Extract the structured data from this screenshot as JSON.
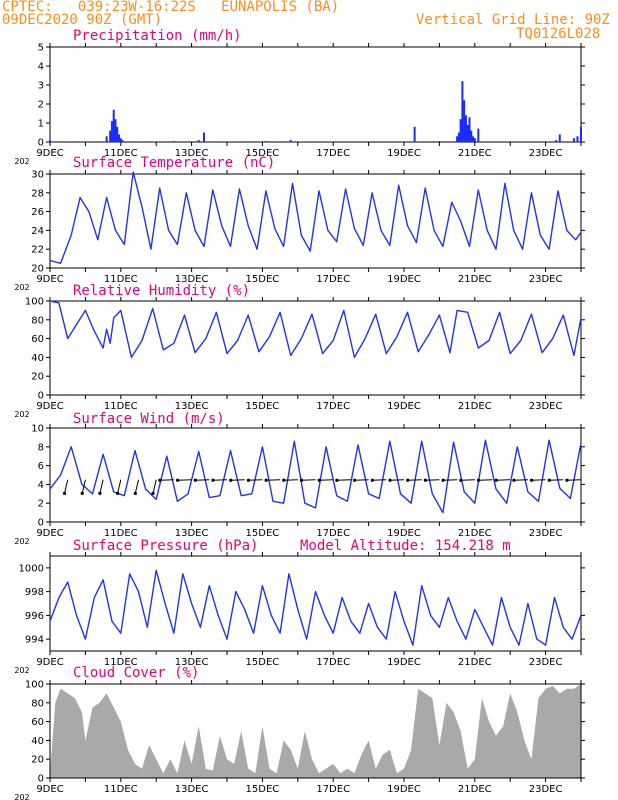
{
  "header": {
    "line1_left": "CPTEC:   039:23W-16:22S   EUNAPOLIS (BA)",
    "line2_left": "09DEC2020 90Z (GMT)",
    "grid_note": "Vertical Grid Line: 90Z",
    "code": "TQ0126L028"
  },
  "colors": {
    "header": "#ff8c1a",
    "title": "#e6007e",
    "line": "#2233ee",
    "bar": "#1a2bff",
    "cloud": "#a9a9a9"
  },
  "x_ticks": [
    "9DEC",
    "11DEC",
    "13DEC",
    "15DEC",
    "17DEC",
    "19DEC",
    "21DEC",
    "23DEC"
  ],
  "year_fragment": "202",
  "model_altitude": "Model Altitude: 154.218 m",
  "chart_data": [
    {
      "type": "bar",
      "title": "Precipitation (mm/h)",
      "ylim": [
        0,
        5
      ],
      "yticks": [
        "0",
        "1",
        "2",
        "3",
        "4",
        "5"
      ],
      "x_days": [
        0.0,
        1.6,
        1.7,
        1.75,
        1.8,
        1.85,
        1.9,
        1.95,
        2.0,
        2.05,
        3.5,
        4.2,
        4.35,
        6.1,
        6.8,
        10.3,
        11.0,
        11.5,
        11.55,
        11.6,
        11.65,
        11.7,
        11.75,
        11.8,
        11.85,
        11.9,
        11.95,
        12.0,
        12.1,
        14.3,
        14.4,
        14.8,
        14.9,
        15.0
      ],
      "values": [
        0.1,
        0.3,
        0.6,
        1.1,
        1.7,
        1.2,
        0.8,
        0.4,
        0.2,
        0.1,
        0.05,
        0.1,
        0.5,
        0.05,
        0.1,
        0.8,
        0.05,
        0.3,
        0.5,
        1.2,
        3.2,
        2.2,
        1.4,
        0.9,
        1.3,
        0.6,
        0.3,
        0.2,
        0.7,
        0.1,
        0.4,
        0.2,
        0.3,
        0.8
      ]
    },
    {
      "type": "line",
      "title": "Surface Temperature (nC)",
      "ylim": [
        20,
        30
      ],
      "yticks": [
        "20",
        "22",
        "24",
        "26",
        "28",
        "30"
      ],
      "x_days": [
        0,
        0.3,
        0.6,
        0.85,
        1.1,
        1.35,
        1.6,
        1.85,
        2.1,
        2.35,
        2.6,
        2.85,
        3.1,
        3.35,
        3.6,
        3.85,
        4.1,
        4.35,
        4.6,
        4.85,
        5.1,
        5.35,
        5.6,
        5.85,
        6.1,
        6.35,
        6.6,
        6.85,
        7.1,
        7.35,
        7.6,
        7.85,
        8.1,
        8.35,
        8.6,
        8.85,
        9.1,
        9.35,
        9.6,
        9.85,
        10.1,
        10.35,
        10.6,
        10.85,
        11.1,
        11.35,
        11.6,
        11.85,
        12.1,
        12.35,
        12.6,
        12.85,
        13.1,
        13.35,
        13.6,
        13.85,
        14.1,
        14.35,
        14.6,
        14.85,
        15.0
      ],
      "values": [
        20.8,
        20.5,
        23.5,
        27.5,
        26.0,
        23.0,
        27.5,
        24.0,
        22.5,
        30.2,
        26.5,
        22.0,
        28.5,
        24.0,
        22.5,
        28.0,
        24.0,
        22.3,
        28.3,
        24.5,
        22.3,
        28.4,
        24.5,
        22.0,
        28.2,
        24.2,
        22.3,
        29.0,
        23.5,
        21.8,
        28.2,
        24.0,
        22.8,
        28.4,
        24.2,
        22.4,
        28.0,
        24.0,
        22.4,
        28.8,
        24.5,
        22.7,
        28.5,
        24.0,
        22.3,
        27.0,
        25.0,
        22.3,
        28.3,
        24.0,
        22.0,
        29.0,
        24.0,
        22.0,
        28.0,
        23.5,
        22.0,
        28.2,
        24.0,
        23.0,
        23.8
      ]
    },
    {
      "type": "line",
      "title": "Relative Humidity (%)",
      "ylim": [
        0,
        100
      ],
      "yticks": [
        "0",
        "20",
        "40",
        "60",
        "80",
        "100"
      ],
      "x_days": [
        0,
        0.25,
        0.5,
        0.75,
        1.0,
        1.25,
        1.5,
        1.6,
        1.7,
        1.8,
        2.0,
        2.3,
        2.6,
        2.9,
        3.2,
        3.5,
        3.8,
        4.1,
        4.4,
        4.7,
        5.0,
        5.3,
        5.6,
        5.9,
        6.2,
        6.5,
        6.8,
        7.1,
        7.4,
        7.7,
        8.0,
        8.3,
        8.6,
        8.9,
        9.2,
        9.5,
        9.8,
        10.1,
        10.4,
        10.7,
        11.0,
        11.3,
        11.5,
        11.8,
        12.1,
        12.4,
        12.7,
        13.0,
        13.3,
        13.6,
        13.9,
        14.2,
        14.5,
        14.8,
        15.0
      ],
      "values": [
        100,
        98,
        60,
        75,
        90,
        68,
        50,
        70,
        55,
        82,
        90,
        40,
        58,
        92,
        48,
        55,
        85,
        45,
        60,
        88,
        44,
        58,
        85,
        46,
        62,
        88,
        42,
        60,
        86,
        44,
        58,
        90,
        40,
        60,
        86,
        44,
        62,
        88,
        46,
        64,
        85,
        45,
        90,
        88,
        50,
        58,
        88,
        44,
        58,
        86,
        45,
        60,
        85,
        42,
        82
      ]
    },
    {
      "type": "line",
      "title": "Surface Wind (m/s)",
      "ylim": [
        0,
        10
      ],
      "yticks": [
        "0",
        "2",
        "4",
        "6",
        "8",
        "10"
      ],
      "x_days": [
        0,
        0.3,
        0.6,
        0.9,
        1.2,
        1.5,
        1.8,
        2.1,
        2.4,
        2.7,
        3.0,
        3.3,
        3.6,
        3.9,
        4.2,
        4.5,
        4.8,
        5.1,
        5.4,
        5.7,
        6.0,
        6.3,
        6.6,
        6.9,
        7.2,
        7.5,
        7.8,
        8.1,
        8.4,
        8.7,
        9.0,
        9.3,
        9.6,
        9.9,
        10.2,
        10.5,
        10.8,
        11.1,
        11.4,
        11.7,
        12.0,
        12.3,
        12.6,
        12.9,
        13.2,
        13.5,
        13.8,
        14.1,
        14.4,
        14.7,
        15.0
      ],
      "values": [
        3.5,
        5.0,
        8.0,
        4.0,
        3.0,
        7.2,
        3.2,
        2.8,
        7.6,
        3.5,
        2.4,
        7.0,
        2.2,
        3.0,
        7.5,
        2.6,
        2.8,
        7.6,
        2.8,
        3.0,
        8.0,
        2.2,
        2.0,
        8.6,
        2.0,
        1.5,
        8.0,
        2.8,
        2.2,
        8.2,
        3.0,
        2.5,
        8.6,
        3.0,
        2.0,
        8.6,
        3.0,
        1.0,
        8.5,
        3.2,
        2.0,
        8.7,
        3.5,
        2.0,
        8.0,
        3.2,
        2.2,
        8.7,
        3.6,
        2.5,
        8.4
      ]
    },
    {
      "type": "line",
      "title": "Surface Pressure (hPa)",
      "ylim": [
        993,
        1001
      ],
      "yticks": [
        "994",
        "996",
        "998",
        "1000"
      ],
      "x_days": [
        0,
        0.25,
        0.5,
        0.75,
        1.0,
        1.25,
        1.5,
        1.75,
        2.0,
        2.25,
        2.5,
        2.75,
        3.0,
        3.25,
        3.5,
        3.75,
        4.0,
        4.25,
        4.5,
        4.75,
        5.0,
        5.25,
        5.5,
        5.75,
        6.0,
        6.25,
        6.5,
        6.75,
        7.0,
        7.25,
        7.5,
        7.75,
        8.0,
        8.25,
        8.5,
        8.75,
        9.0,
        9.25,
        9.5,
        9.75,
        10.0,
        10.25,
        10.5,
        10.75,
        11.0,
        11.25,
        11.5,
        11.75,
        12.0,
        12.25,
        12.5,
        12.75,
        13.0,
        13.25,
        13.5,
        13.75,
        14.0,
        14.25,
        14.5,
        14.75,
        15.0
      ],
      "values": [
        995.5,
        997.5,
        998.8,
        996.0,
        994.0,
        997.5,
        999.0,
        995.5,
        994.5,
        999.5,
        998.0,
        995.0,
        999.8,
        997.0,
        994.5,
        999.5,
        997.0,
        995.0,
        998.5,
        996.0,
        994.0,
        998.0,
        996.5,
        994.5,
        998.5,
        996.0,
        994.5,
        999.5,
        996.5,
        994.0,
        998.0,
        996.0,
        994.5,
        997.5,
        995.5,
        994.5,
        997.0,
        995.0,
        994.0,
        998.0,
        995.5,
        993.5,
        998.5,
        996.0,
        995.0,
        997.5,
        995.5,
        994.0,
        996.5,
        995.0,
        993.5,
        997.5,
        995.0,
        993.5,
        997.0,
        994.0,
        993.5,
        997.5,
        995.0,
        994.0,
        996.0
      ]
    },
    {
      "type": "area",
      "title": "Cloud Cover (%)",
      "ylim": [
        0,
        100
      ],
      "yticks": [
        "0",
        "20",
        "40",
        "60",
        "80",
        "100"
      ],
      "x_days": [
        0,
        0.15,
        0.3,
        0.5,
        0.7,
        0.9,
        1.0,
        1.2,
        1.4,
        1.6,
        1.8,
        2.0,
        2.2,
        2.4,
        2.6,
        2.8,
        3.0,
        3.2,
        3.4,
        3.6,
        3.8,
        4.0,
        4.2,
        4.4,
        4.6,
        4.8,
        5.0,
        5.2,
        5.4,
        5.6,
        5.8,
        6.0,
        6.2,
        6.4,
        6.6,
        6.8,
        7.0,
        7.2,
        7.4,
        7.6,
        7.8,
        8.0,
        8.2,
        8.4,
        8.6,
        8.8,
        9.0,
        9.2,
        9.4,
        9.6,
        9.8,
        10.0,
        10.2,
        10.4,
        10.6,
        10.8,
        11.0,
        11.2,
        11.4,
        11.6,
        11.8,
        12.0,
        12.2,
        12.4,
        12.6,
        12.8,
        13.0,
        13.2,
        13.4,
        13.6,
        13.8,
        14.0,
        14.2,
        14.4,
        14.6,
        14.8,
        15.0
      ],
      "values": [
        5,
        80,
        95,
        90,
        85,
        70,
        40,
        75,
        80,
        90,
        75,
        60,
        30,
        15,
        10,
        35,
        20,
        5,
        20,
        5,
        40,
        15,
        55,
        10,
        8,
        45,
        20,
        15,
        50,
        10,
        5,
        55,
        10,
        5,
        40,
        30,
        10,
        50,
        20,
        5,
        10,
        15,
        5,
        10,
        5,
        25,
        40,
        10,
        25,
        30,
        5,
        10,
        30,
        95,
        90,
        85,
        35,
        80,
        70,
        50,
        10,
        20,
        85,
        60,
        45,
        55,
        90,
        70,
        40,
        20,
        85,
        95,
        98,
        90,
        95,
        95,
        100
      ]
    }
  ]
}
